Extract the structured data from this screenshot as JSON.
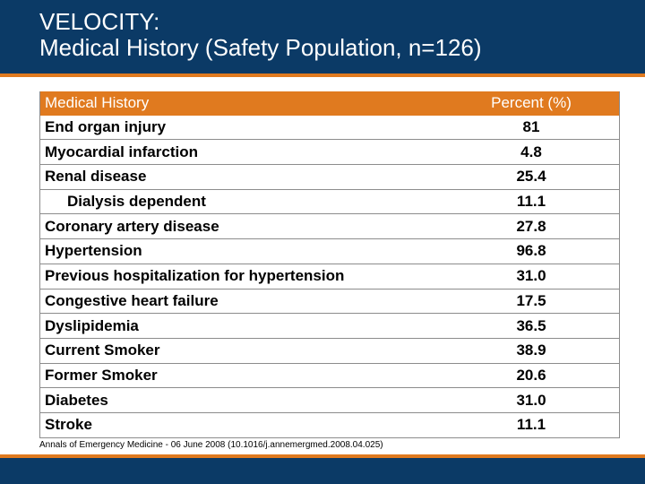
{
  "title": {
    "line1": "VELOCITY:",
    "line2": "Medical History (Safety Population, n=126)"
  },
  "table": {
    "headers": [
      "Medical History",
      "Percent (%)"
    ],
    "rows": [
      {
        "label": "End organ injury",
        "value": "81"
      },
      {
        "label": "Myocardial infarction",
        "value": "4.8"
      },
      {
        "label": "Renal disease",
        "value": "25.4"
      },
      {
        "label": "Dialysis dependent",
        "value": "11.1"
      },
      {
        "label": "Coronary artery disease",
        "value": "27.8"
      },
      {
        "label": "Hypertension",
        "value": "96.8"
      },
      {
        "label": "Previous hospitalization for hypertension",
        "value": "31.0"
      },
      {
        "label": "Congestive heart failure",
        "value": "17.5"
      },
      {
        "label": "Dyslipidemia",
        "value": "36.5"
      },
      {
        "label": "Current Smoker",
        "value": "38.9"
      },
      {
        "label": "Former Smoker",
        "value": "20.6"
      },
      {
        "label": "Diabetes",
        "value": "31.0"
      },
      {
        "label": "Stroke",
        "value": "11.1"
      }
    ]
  },
  "citation": "Annals of Emergency Medicine - 06 June 2008 (10.1016/j.annemergmed.2008.04.025)",
  "colors": {
    "header_blue": "#0b3a66",
    "accent_orange": "#e07a1f"
  }
}
